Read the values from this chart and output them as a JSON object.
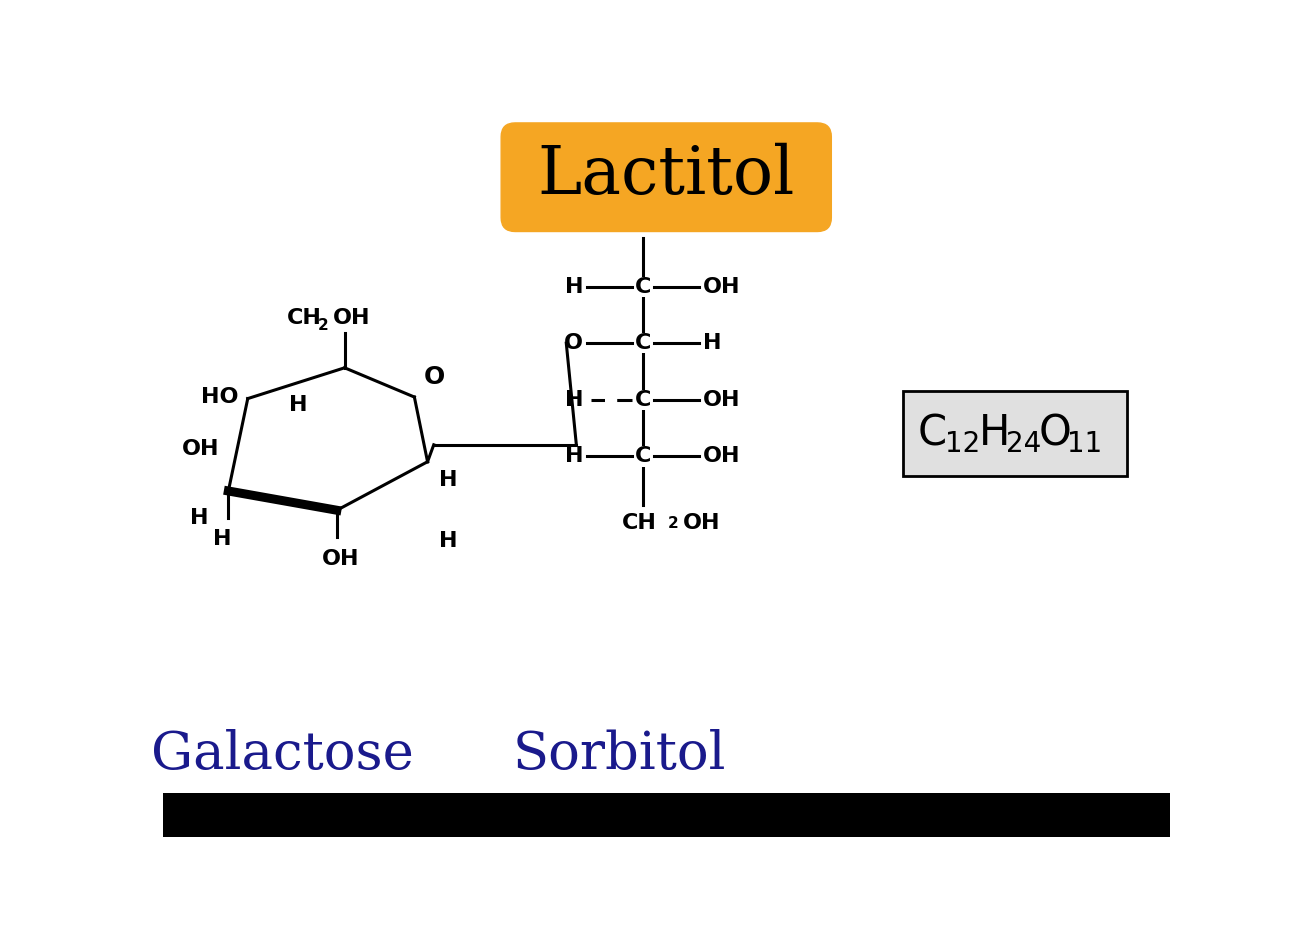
{
  "title": "Lactitol",
  "title_bg_color": "#F5A623",
  "title_text_color": "#000000",
  "title_fontsize": 48,
  "bg_color": "#ffffff",
  "label_galactose": "Galactose",
  "label_sorbitol": "Sorbitol",
  "label_color": "#1a1a8c",
  "label_fontsize": 38,
  "formula_fontsize": 30,
  "formula_sub_fontsize": 20,
  "formula_bg": "#e0e0e0",
  "struct_fontsize": 16,
  "struct_sub_fontsize": 11,
  "bottom_bar_color": "#000000"
}
